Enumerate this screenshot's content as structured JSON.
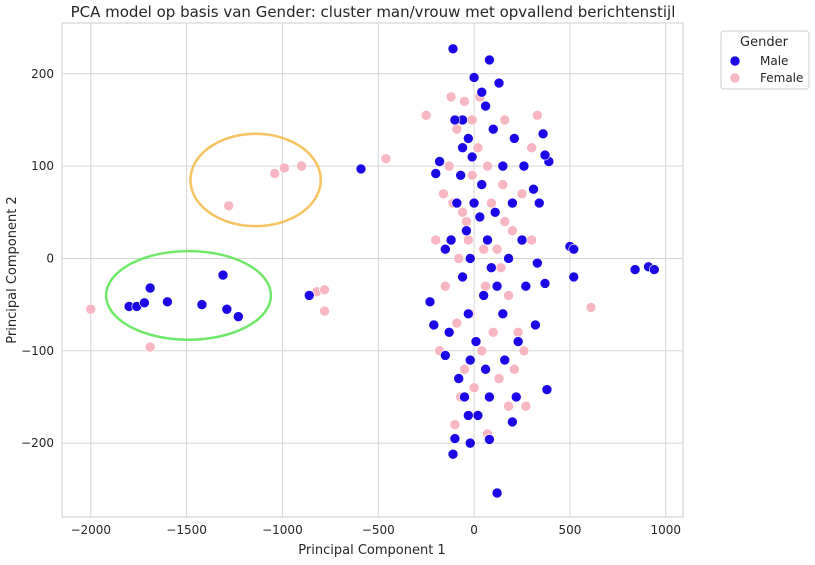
{
  "chart_data": {
    "type": "scatter",
    "title": "PCA model op basis van Gender: cluster man/vrouw met opvallend berichtenstijl",
    "xlabel": "Principal Component 1",
    "ylabel": "Principal Component 2",
    "xlim": [
      -2150,
      1090
    ],
    "ylim": [
      -280,
      255
    ],
    "xticks": [
      -2000,
      -1500,
      -1000,
      -500,
      0,
      500,
      1000
    ],
    "yticks": [
      -200,
      -100,
      0,
      100,
      200
    ],
    "xtick_labels": [
      "−2000",
      "−1500",
      "−1000",
      "−500",
      "0",
      "500",
      "1000"
    ],
    "ytick_labels": [
      "−200",
      "−100",
      "0",
      "100",
      "200"
    ],
    "grid": true,
    "legend": {
      "title": "Gender",
      "position": "outside-top-right"
    },
    "series": [
      {
        "name": "Male",
        "color": "#1a06e6",
        "points": [
          [
            -1800,
            -52
          ],
          [
            -1760,
            -52
          ],
          [
            -1720,
            -48
          ],
          [
            -1690,
            -32
          ],
          [
            -1600,
            -47
          ],
          [
            -1420,
            -50
          ],
          [
            -1310,
            -18
          ],
          [
            -1290,
            -55
          ],
          [
            -1230,
            -63
          ],
          [
            -860,
            -40
          ],
          [
            -590,
            97
          ],
          [
            -110,
            227
          ],
          [
            80,
            215
          ],
          [
            0,
            196
          ],
          [
            40,
            180
          ],
          [
            500,
            13
          ],
          [
            520,
            10
          ],
          [
            520,
            -20
          ],
          [
            840,
            -12
          ],
          [
            910,
            -9
          ],
          [
            940,
            -12
          ],
          [
            120,
            -254
          ],
          [
            -20,
            -200
          ],
          [
            -110,
            -212
          ],
          [
            -100,
            -195
          ],
          [
            80,
            -196
          ],
          [
            200,
            -177
          ],
          [
            220,
            -150
          ],
          [
            380,
            -142
          ],
          [
            -230,
            -47
          ],
          [
            -210,
            -72
          ],
          [
            -150,
            -105
          ],
          [
            320,
            -72
          ],
          [
            330,
            -5
          ],
          [
            370,
            -27
          ],
          [
            360,
            135
          ],
          [
            390,
            105
          ],
          [
            370,
            112
          ],
          [
            340,
            60
          ],
          [
            310,
            75
          ],
          [
            -180,
            105
          ],
          [
            -200,
            92
          ],
          [
            -60,
            150
          ],
          [
            -30,
            130
          ],
          [
            60,
            165
          ],
          [
            -90,
            60
          ],
          [
            -120,
            20
          ],
          [
            -60,
            -20
          ],
          [
            -30,
            -60
          ],
          [
            30,
            45
          ],
          [
            70,
            20
          ],
          [
            120,
            -30
          ],
          [
            -20,
            0
          ],
          [
            10,
            -90
          ],
          [
            60,
            -120
          ],
          [
            150,
            100
          ],
          [
            200,
            60
          ],
          [
            250,
            20
          ],
          [
            270,
            -30
          ],
          [
            230,
            -90
          ],
          [
            -50,
            -150
          ],
          [
            20,
            -170
          ],
          [
            -80,
            -130
          ],
          [
            100,
            140
          ],
          [
            -10,
            110
          ],
          [
            40,
            80
          ],
          [
            150,
            -60
          ],
          [
            180,
            0
          ],
          [
            -130,
            -80
          ],
          [
            -40,
            30
          ],
          [
            90,
            -10
          ],
          [
            -70,
            90
          ],
          [
            110,
            50
          ],
          [
            160,
            -110
          ],
          [
            -150,
            10
          ],
          [
            210,
            130
          ],
          [
            -100,
            150
          ],
          [
            50,
            -40
          ],
          [
            -20,
            -110
          ],
          [
            130,
            190
          ],
          [
            0,
            60
          ],
          [
            -60,
            120
          ],
          [
            80,
            -150
          ],
          [
            260,
            100
          ],
          [
            -30,
            -170
          ]
        ]
      },
      {
        "name": "Female",
        "color": "#f7b6c2",
        "points": [
          [
            -2000,
            -55
          ],
          [
            -1690,
            -96
          ],
          [
            -1280,
            57
          ],
          [
            -1040,
            92
          ],
          [
            -990,
            98
          ],
          [
            -900,
            100
          ],
          [
            -820,
            -36
          ],
          [
            -780,
            -34
          ],
          [
            -780,
            -57
          ],
          [
            -460,
            108
          ],
          [
            610,
            -53
          ],
          [
            -250,
            155
          ],
          [
            -120,
            175
          ],
          [
            -90,
            140
          ],
          [
            -50,
            170
          ],
          [
            30,
            175
          ],
          [
            100,
            140
          ],
          [
            160,
            150
          ],
          [
            300,
            120
          ],
          [
            330,
            155
          ],
          [
            -160,
            70
          ],
          [
            -60,
            50
          ],
          [
            -10,
            90
          ],
          [
            90,
            60
          ],
          [
            200,
            30
          ],
          [
            230,
            -80
          ],
          [
            260,
            -100
          ],
          [
            180,
            -160
          ],
          [
            130,
            -130
          ],
          [
            -70,
            -150
          ],
          [
            -100,
            -180
          ],
          [
            70,
            -190
          ],
          [
            -180,
            -100
          ],
          [
            -200,
            20
          ],
          [
            -40,
            40
          ],
          [
            60,
            -30
          ],
          [
            120,
            10
          ],
          [
            -20,
            -60
          ],
          [
            150,
            80
          ],
          [
            250,
            70
          ],
          [
            20,
            120
          ],
          [
            -130,
            100
          ],
          [
            300,
            20
          ],
          [
            -150,
            -30
          ],
          [
            100,
            -80
          ],
          [
            40,
            -100
          ],
          [
            -80,
            0
          ],
          [
            180,
            -40
          ],
          [
            -10,
            150
          ],
          [
            270,
            -160
          ],
          [
            -50,
            -120
          ],
          [
            160,
            40
          ],
          [
            70,
            100
          ],
          [
            -110,
            60
          ],
          [
            210,
            -120
          ],
          [
            0,
            -140
          ],
          [
            -30,
            20
          ],
          [
            140,
            -10
          ],
          [
            -90,
            -70
          ],
          [
            50,
            10
          ]
        ]
      }
    ],
    "annotations": [
      {
        "shape": "ellipse",
        "color": "#f7c260",
        "center": [
          -1140,
          85
        ],
        "radii": [
          340,
          50
        ]
      },
      {
        "shape": "ellipse",
        "color": "#6fe86a",
        "center": [
          -1490,
          -40
        ],
        "radii": [
          430,
          48
        ]
      }
    ]
  }
}
